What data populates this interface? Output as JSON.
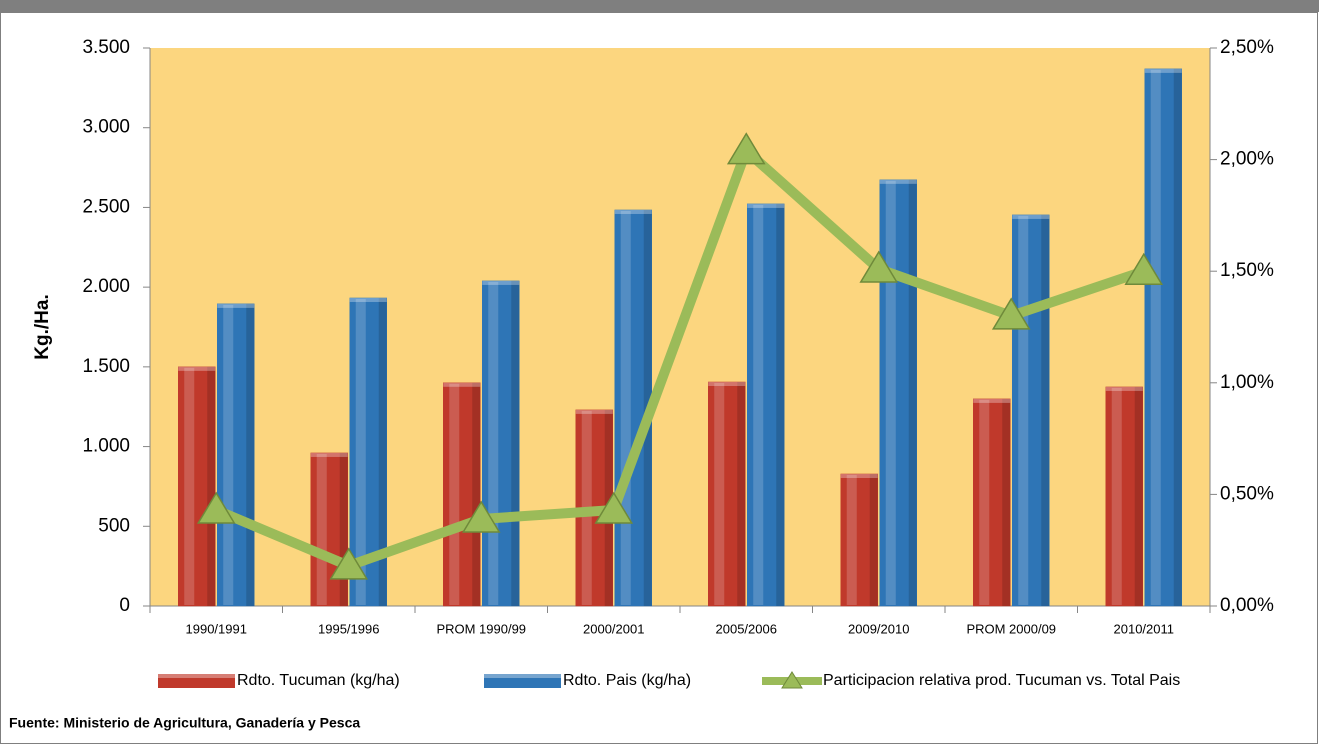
{
  "chart_data": {
    "type": "bar-line",
    "y_label": "Kg./Ha.",
    "source": "Fuente: Ministerio de Agricultura, Ganadería y Pesca",
    "categories": [
      "1990/1991",
      "1995/1996",
      "PROM 1990/99",
      "2000/2001",
      "2005/2006",
      "2009/2010",
      "PROM 2000/09",
      "2010/2011"
    ],
    "series": [
      {
        "name": "Rdto. Tucuman (kg/ha)",
        "color": "#C0392B",
        "type": "bar",
        "values": [
          1500,
          960,
          1400,
          1230,
          1405,
          828,
          1299,
          1374
        ]
      },
      {
        "name": "Rdto. Pais (kg/ha)",
        "color": "#2E75B6",
        "type": "bar",
        "values": [
          1895,
          1932,
          2039,
          2484,
          2522,
          2673,
          2453,
          3369
        ]
      },
      {
        "name": "Participacion relativa prod. Tucuman vs. Total Pais",
        "color": "#9BBB59",
        "type": "line",
        "axis": "y2",
        "values": [
          0.43,
          0.18,
          0.39,
          0.43,
          2.04,
          1.51,
          1.3,
          1.5
        ]
      }
    ],
    "ylim": [
      0,
      3500
    ],
    "yticks": [
      0,
      500,
      {
        "value": 1000,
        "label": "1.000"
      },
      {
        "value": 1500,
        "label": "1.500"
      },
      {
        "value": 2000,
        "label": "2.000"
      },
      {
        "value": 2500,
        "label": "2.500"
      },
      {
        "value": 3000,
        "label": "3.000"
      },
      {
        "value": 3500,
        "label": "3.500"
      }
    ],
    "y2lim": [
      0,
      2.5
    ],
    "y2ticks": [
      {
        "value": 0,
        "label": "0,00%"
      },
      {
        "value": 0.5,
        "label": "0,50%"
      },
      {
        "value": 1,
        "label": "1,00%"
      },
      {
        "value": 1.5,
        "label": "1,50%"
      },
      {
        "value": 2,
        "label": "2,00%"
      },
      {
        "value": 2.5,
        "label": "2,50%"
      }
    ],
    "plot_background": "#FCD67F",
    "legend": "bottom"
  }
}
